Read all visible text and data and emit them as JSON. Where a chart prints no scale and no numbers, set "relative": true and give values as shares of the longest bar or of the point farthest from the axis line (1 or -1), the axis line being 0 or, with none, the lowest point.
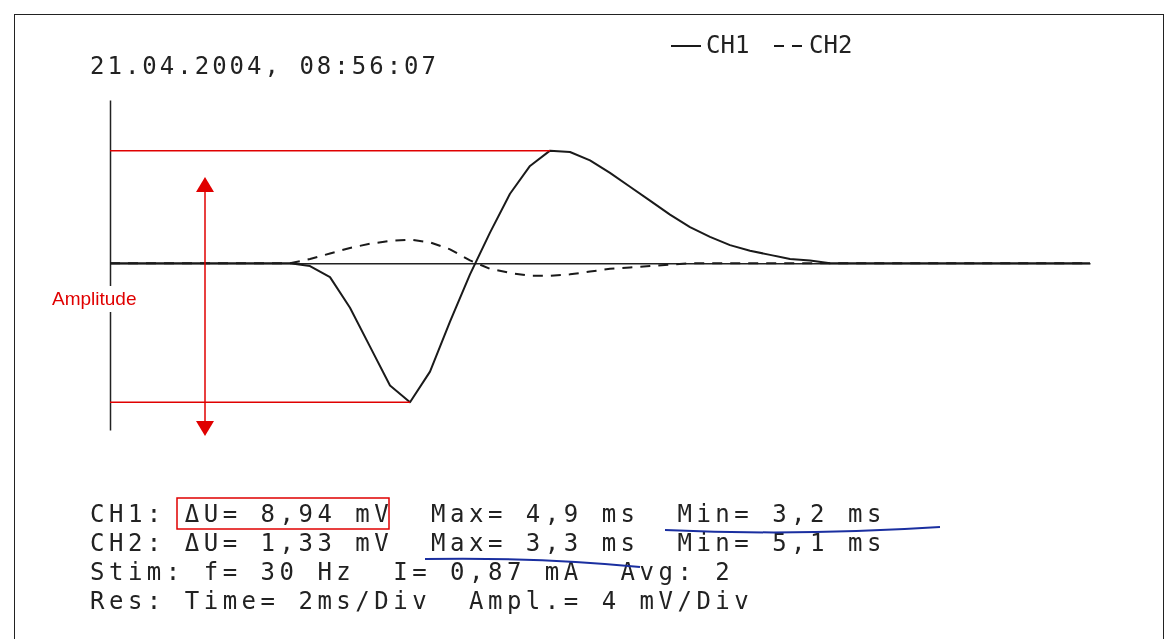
{
  "chart_data": {
    "type": "line",
    "title": "21.04.2004, 08:56:07",
    "categories": [
      null,
      null,
      null,
      null,
      null,
      null,
      null,
      null,
      null,
      null,
      null,
      null,
      null,
      null,
      null,
      null,
      null,
      null,
      null,
      null,
      null,
      null,
      null,
      null,
      null,
      null,
      null,
      null,
      null,
      null,
      null,
      null,
      null,
      null,
      null,
      null,
      null,
      null,
      null,
      null,
      null,
      null,
      null,
      null,
      null,
      null,
      null,
      null,
      null,
      null
    ],
    "relative": true,
    "series": [
      {
        "name": "CH1",
        "color": "#1a1a1a",
        "line_style": "solid",
        "values": [
          0,
          0,
          0,
          0,
          0,
          0,
          0,
          0,
          0,
          0,
          -0.02,
          -0.1,
          -0.32,
          -0.6,
          -0.88,
          -1,
          -0.78,
          -0.42,
          -0.08,
          0.22,
          0.5,
          0.7,
          0.81,
          0.8,
          0.74,
          0.65,
          0.55,
          0.45,
          0.35,
          0.26,
          0.19,
          0.13,
          0.09,
          0.06,
          0.03,
          0.02,
          0,
          0,
          0,
          0,
          0,
          0,
          0,
          0,
          0,
          0,
          0,
          0,
          0,
          0
        ]
      },
      {
        "name": "CH2",
        "color": "#1a1a1a",
        "line_style": "dashed",
        "values": [
          0,
          0,
          0,
          0,
          0,
          0,
          0,
          0,
          0,
          0,
          0.03,
          0.07,
          0.11,
          0.14,
          0.16,
          0.17,
          0.15,
          0.1,
          0.02,
          -0.04,
          -0.07,
          -0.09,
          -0.09,
          -0.08,
          -0.06,
          -0.04,
          -0.03,
          -0.02,
          -0.01,
          0,
          0,
          0,
          0,
          0,
          0,
          0,
          0,
          0,
          0,
          0,
          0,
          0,
          0,
          0,
          0,
          0,
          0,
          0,
          0,
          0
        ]
      }
    ],
    "legend": "top right",
    "ref_lines": [
      {
        "axis": "y",
        "value": 0.81,
        "color": "#e00000"
      },
      {
        "axis": "y",
        "value": -1,
        "color": "#e00000"
      }
    ],
    "annotations": [
      "Amplitude",
      "CH1: ΔU= 8,94 mV  Max= 4,9 ms  Min= 3,2 ms",
      "CH2: ΔU= 1,33 mV  Max= 3,3 ms  Min= 5,1 ms",
      "Stim: f= 30 Hz  I= 0,87 mA  Avg: 2",
      "Res: Time= 2ms/Div  Ampl.= 4 mV/Div"
    ]
  }
}
